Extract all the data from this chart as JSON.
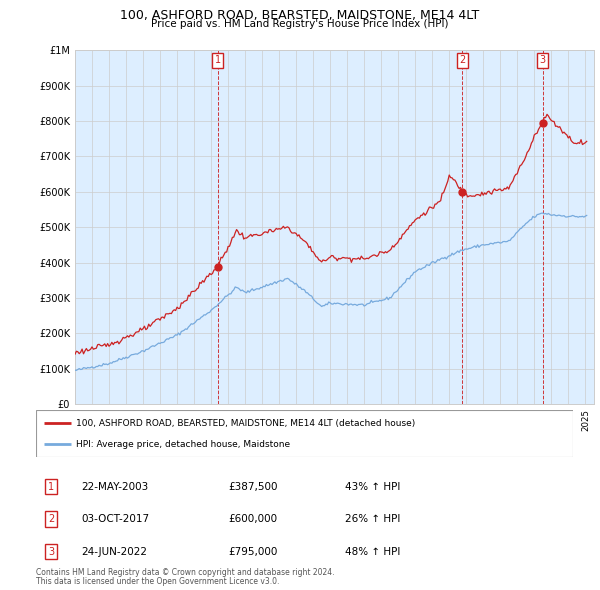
{
  "title": "100, ASHFORD ROAD, BEARSTED, MAIDSTONE, ME14 4LT",
  "subtitle": "Price paid vs. HM Land Registry's House Price Index (HPI)",
  "property_label": "100, ASHFORD ROAD, BEARSTED, MAIDSTONE, ME14 4LT (detached house)",
  "hpi_label": "HPI: Average price, detached house, Maidstone",
  "footnote1": "Contains HM Land Registry data © Crown copyright and database right 2024.",
  "footnote2": "This data is licensed under the Open Government Licence v3.0.",
  "transactions": [
    {
      "num": 1,
      "date": "22-MAY-2003",
      "price": "£387,500",
      "hpi_change": "43% ↑ HPI",
      "year": 2003.38,
      "value": 387500
    },
    {
      "num": 2,
      "date": "03-OCT-2017",
      "price": "£600,000",
      "hpi_change": "26% ↑ HPI",
      "year": 2017.75,
      "value": 600000
    },
    {
      "num": 3,
      "date": "24-JUN-2022",
      "price": "£795,000",
      "hpi_change": "48% ↑ HPI",
      "year": 2022.48,
      "value": 795000
    }
  ],
  "ylim": [
    0,
    1000000
  ],
  "ytick_max": 1000000,
  "xlim_start": 1995.0,
  "xlim_end": 2025.5,
  "property_color": "#cc2222",
  "hpi_color": "#77aadd",
  "shade_color": "#ddeeff",
  "dashed_line_color": "#cc2222",
  "box_edge_color": "#cc2222",
  "background_color": "#ffffff",
  "grid_color": "#cccccc"
}
